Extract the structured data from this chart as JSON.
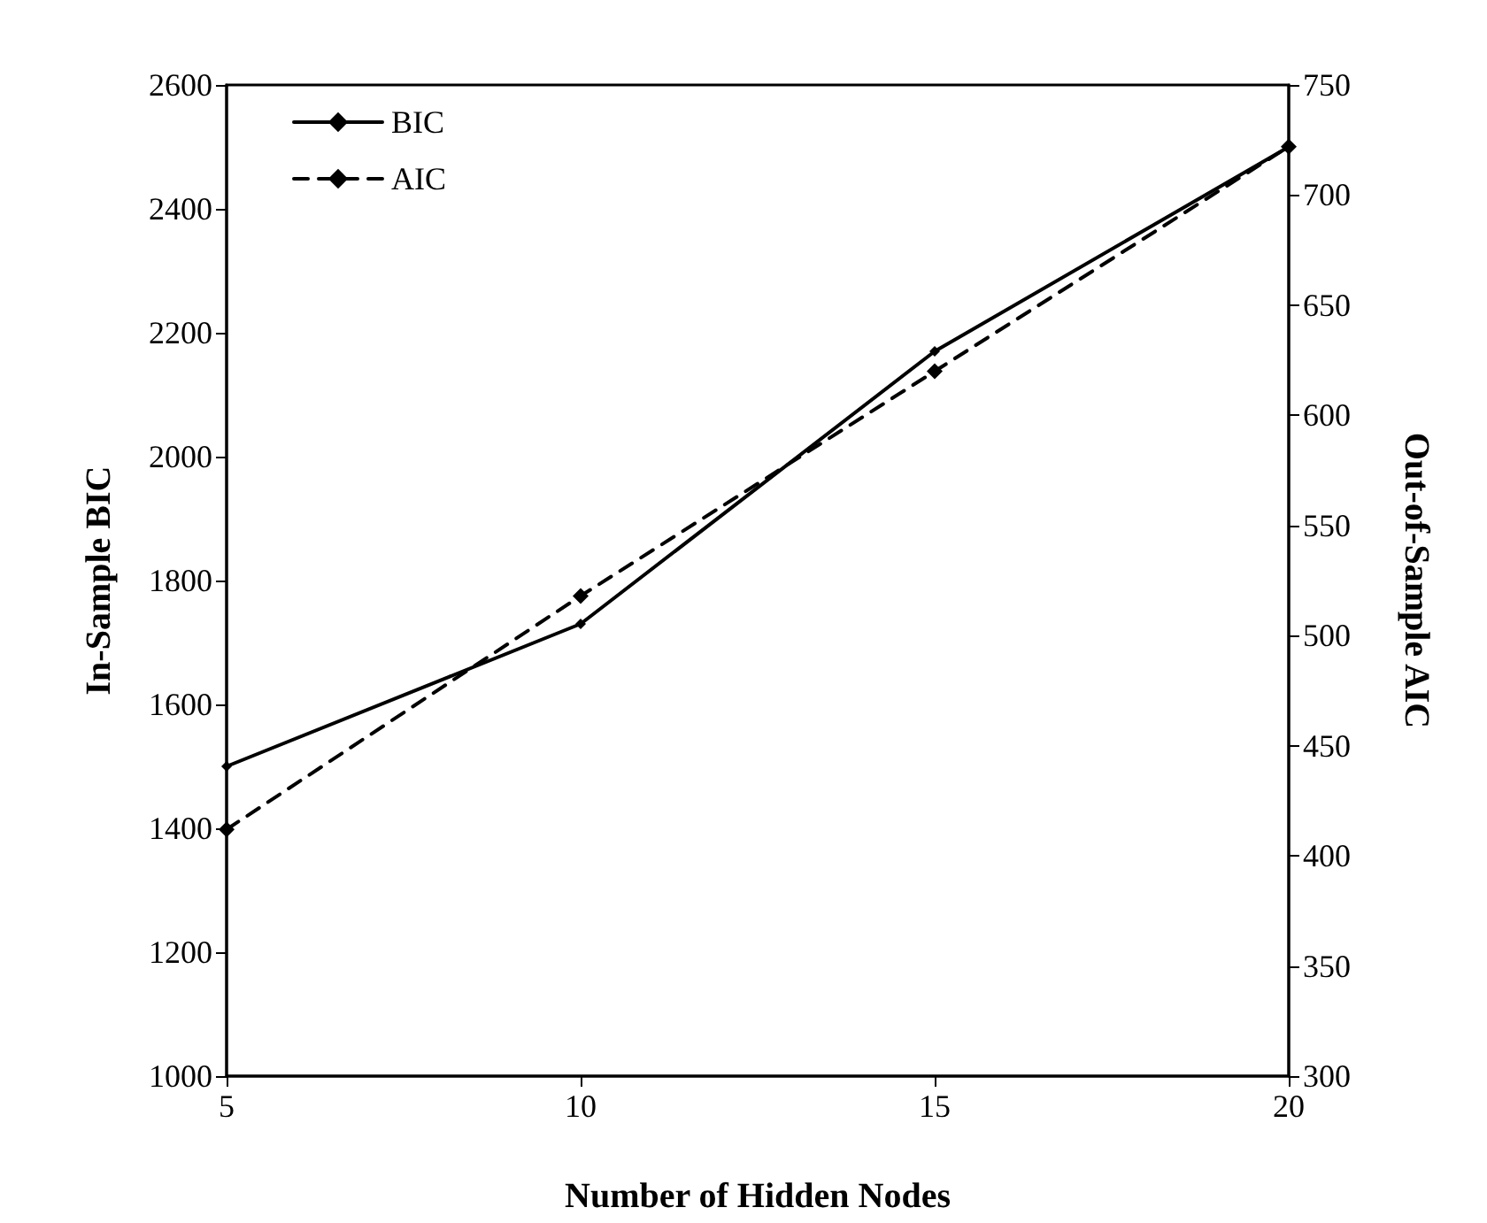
{
  "chart_data": {
    "type": "line",
    "xlabel": "Number of Hidden Nodes",
    "ylabel": "In-Sample BIC",
    "y2label": "Out-of-Sample AIC",
    "x": [
      5,
      10,
      15,
      20
    ],
    "xlim": [
      5,
      20
    ],
    "xticks": [
      5,
      10,
      15,
      20
    ],
    "ylim": [
      1000,
      2600
    ],
    "yticks": [
      1000,
      1200,
      1400,
      1600,
      1800,
      2000,
      2200,
      2400,
      2600
    ],
    "y2lim": [
      300,
      750
    ],
    "y2ticks": [
      300,
      350,
      400,
      450,
      500,
      550,
      600,
      650,
      700,
      750
    ],
    "legend": "top left",
    "grid": false,
    "marker": "diamond",
    "series": [
      {
        "name": "BIC",
        "color": "#000000",
        "values": [
          1500,
          1730,
          2170,
          2500
        ],
        "line_style": "solid"
      },
      {
        "name": "AIC",
        "color": "#000000",
        "values": [
          412,
          518,
          620,
          722
        ],
        "axis": "y2",
        "line_style": "dashed"
      }
    ]
  }
}
